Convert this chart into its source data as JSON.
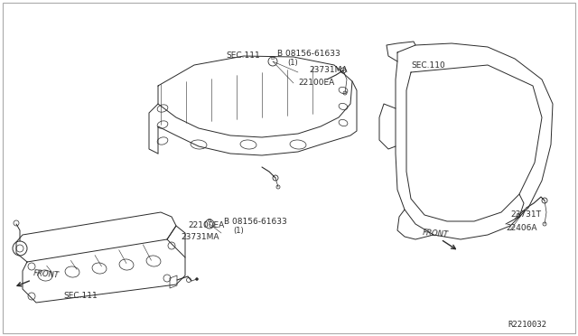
{
  "background_color": "#ffffff",
  "line_color": "#2a2a2a",
  "text_color": "#2a2a2a",
  "font_size": 6.5,
  "labels": {
    "top_bolt": "B 08156-61633",
    "top_bolt_sub": "(1)",
    "top_sensor_a": "23731MA",
    "top_sensor_b": "22100EA",
    "sec111_top": "SEC.111",
    "sec111_bottom": "SEC.111",
    "sec110": "SEC.110",
    "bottom_bolt": "B 08156-61633",
    "bottom_bolt_sub": "(1)",
    "bottom_sensor_a": "22100EA",
    "bottom_sensor_b": "23731MA",
    "front_left": "FRONT",
    "front_right": "FRONT",
    "part1": "23731T",
    "part2": "22406A",
    "ref_code": "R2210032"
  },
  "border_color": "#aaaaaa"
}
